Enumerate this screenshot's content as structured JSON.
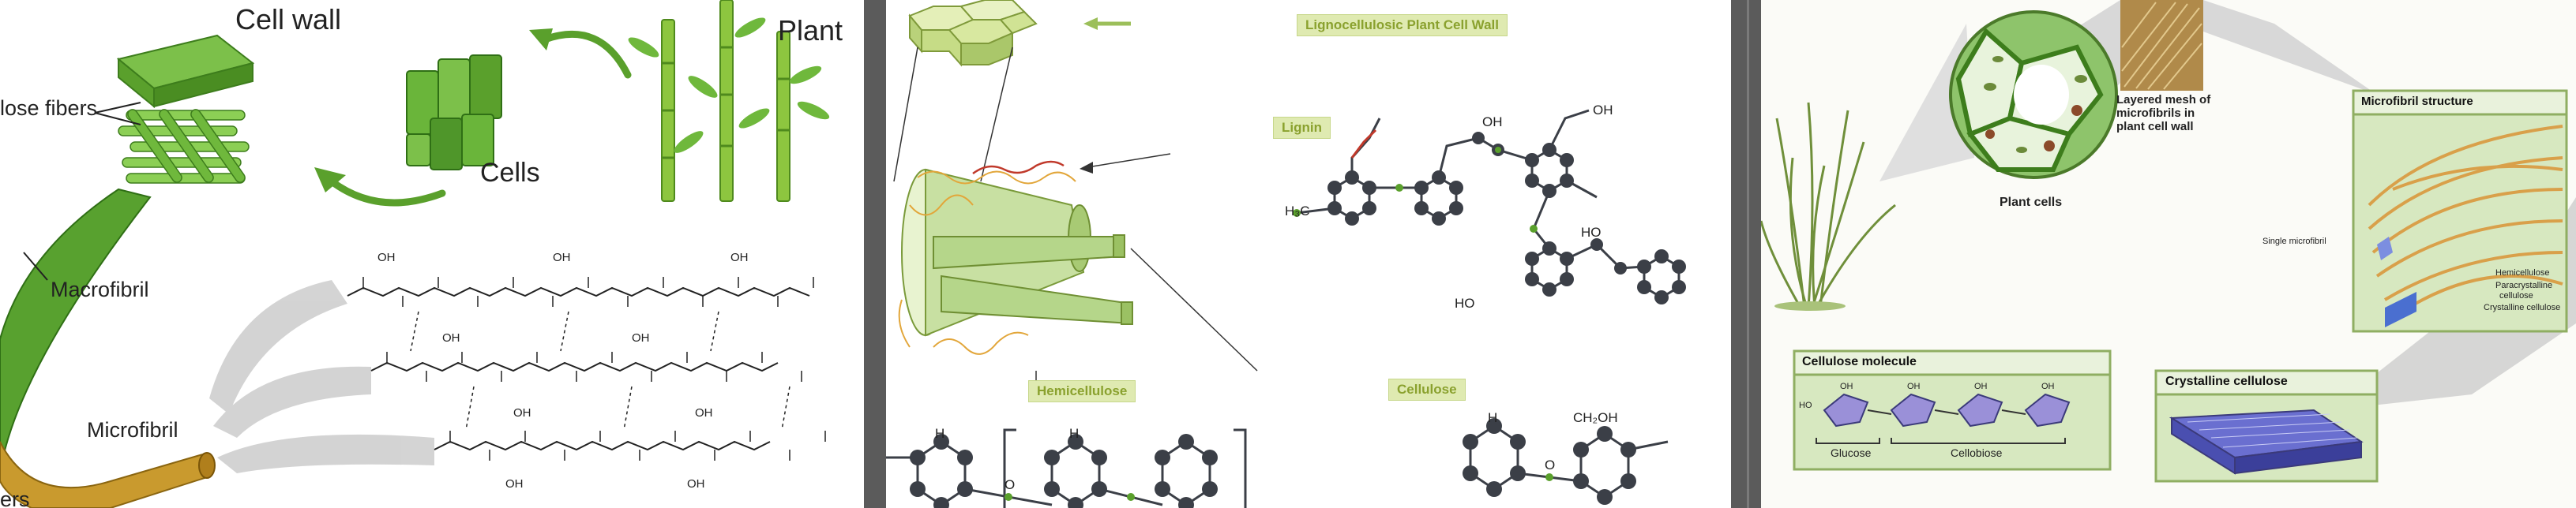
{
  "panel_a": {
    "labels": {
      "cell_wall": "Cell wall",
      "plant": "Plant",
      "cells": "Cells",
      "fibers_top": "lose fibers",
      "macrofibril": "Macrofibril",
      "microfibril": "Microfibril",
      "fibers_bottom": "ers"
    },
    "oh": "OH",
    "colors": {
      "green": "#5aa02c",
      "dark_green": "#3d7d1c",
      "brown": "#c99a2e"
    }
  },
  "panel_b": {
    "labels": {
      "wall": "Lignocellulosic Plant Cell Wall",
      "lignin": "Lignin",
      "hemicellulose": "Hemicellulose",
      "cellulose": "Cellulose"
    },
    "atoms": {
      "h": "H",
      "o": "O",
      "oh": "OH",
      "ho": "HO",
      "h3c_o": "H₃C",
      "ch2oh": "CH₂OH"
    },
    "colors": {
      "tag_text": "#8aa12e",
      "tag_bg": "#dfeab1",
      "atom": "#3b3f47"
    }
  },
  "panel_c": {
    "labels": {
      "layered_mesh": [
        "Layered mesh of",
        "microfibrils in",
        "plant cell wall"
      ],
      "plant_cells": "Plant cells",
      "microfibril_structure": "Microfibril structure",
      "single_microfibril": "Single microfibril",
      "hemicellulose": "Hemicellulose",
      "paracrystalline": [
        "Paracrystalline",
        "cellulose"
      ],
      "crystalline_cellulose_small": "Crystalline cellulose",
      "cellulose_molecule": "Cellulose molecule",
      "glucose": "Glucose",
      "cellobiose": "Cellobiose",
      "crystalline_cellulose_box": "Crystalline cellulose"
    },
    "oh": "OH",
    "ho": "HO",
    "colors": {
      "box_bg": "#d7e8c0",
      "box_border": "#8fae62",
      "crystal": "#5a5fc0"
    }
  }
}
